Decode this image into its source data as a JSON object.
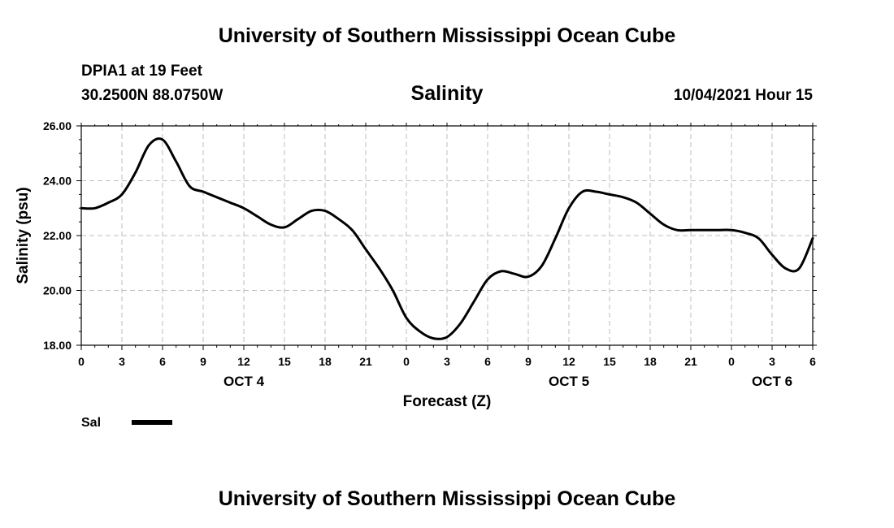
{
  "header": {
    "title": "University of Southern Mississippi Ocean Cube",
    "station": "DPIA1 at 19 Feet",
    "coords": "30.2500N  88.0750W",
    "chart_title": "Salinity",
    "datetime": "10/04/2021 Hour 15"
  },
  "footer": {
    "title": "University of Southern Mississippi Ocean Cube"
  },
  "legend": {
    "label": "Sal"
  },
  "chart_data": {
    "type": "line",
    "title": "Salinity",
    "xlabel": "Forecast (Z)",
    "ylabel": "Salinity (psu)",
    "ylim": [
      18,
      26
    ],
    "yticks": [
      "18.00",
      "20.00",
      "22.00",
      "24.00",
      "26.00"
    ],
    "xticks": [
      "0",
      "3",
      "6",
      "9",
      "12",
      "15",
      "18",
      "21",
      "0",
      "3",
      "6",
      "9",
      "12",
      "15",
      "18",
      "21",
      "0",
      "3",
      "6"
    ],
    "day_labels": [
      {
        "label": "OCT 4",
        "hour": 12
      },
      {
        "label": "OCT 5",
        "hour": 36
      },
      {
        "label": "OCT 6",
        "hour": 51
      }
    ],
    "grid": true,
    "legend_placement": "bottom-left",
    "line_color": "#000000",
    "series": [
      {
        "name": "Sal",
        "x": [
          0,
          1,
          2,
          3,
          4,
          5,
          6,
          7,
          8,
          9,
          10,
          11,
          12,
          13,
          14,
          15,
          16,
          17,
          18,
          19,
          20,
          21,
          22,
          23,
          24,
          25,
          26,
          27,
          28,
          29,
          30,
          31,
          32,
          33,
          34,
          35,
          36,
          37,
          38,
          39,
          40,
          41,
          42,
          43,
          44,
          45,
          46,
          47,
          48,
          49,
          50,
          51,
          52,
          53,
          54
        ],
        "values": [
          23.0,
          23.0,
          23.2,
          23.5,
          24.3,
          25.3,
          25.5,
          24.7,
          23.8,
          23.6,
          23.4,
          23.2,
          23.0,
          22.7,
          22.4,
          22.3,
          22.6,
          22.9,
          22.9,
          22.6,
          22.2,
          21.5,
          20.8,
          20.0,
          19.0,
          18.5,
          18.25,
          18.3,
          18.8,
          19.6,
          20.4,
          20.7,
          20.6,
          20.5,
          20.9,
          21.9,
          23.0,
          23.6,
          23.6,
          23.5,
          23.4,
          23.2,
          22.8,
          22.4,
          22.2,
          22.2,
          22.2,
          22.2,
          22.2,
          22.1,
          21.9,
          21.3,
          20.8,
          20.8,
          21.9
        ]
      }
    ]
  }
}
